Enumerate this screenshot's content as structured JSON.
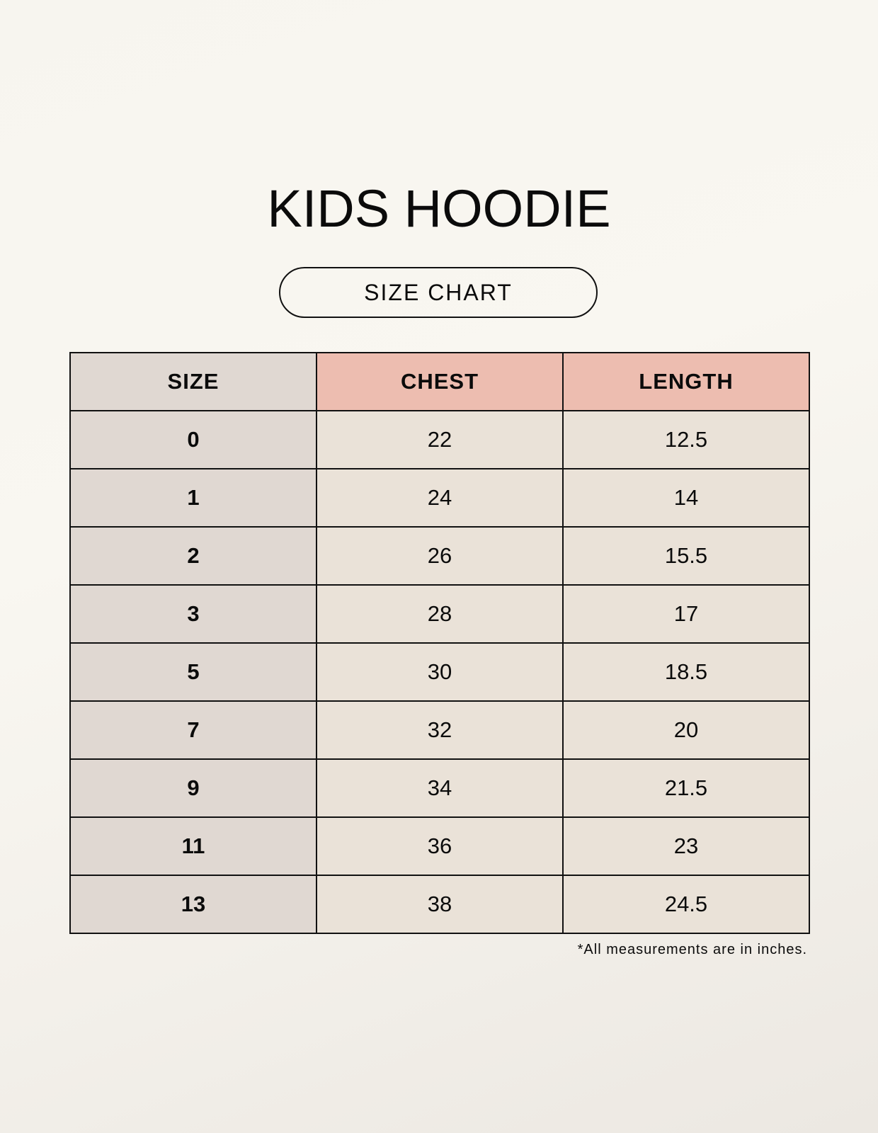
{
  "title": "KIDS HOODIE",
  "subtitle": "SIZE CHART",
  "table": {
    "headers": [
      "SIZE",
      "CHEST",
      "LENGTH"
    ],
    "rows": [
      [
        "0",
        "22",
        "12.5"
      ],
      [
        "1",
        "24",
        "14"
      ],
      [
        "2",
        "26",
        "15.5"
      ],
      [
        "3",
        "28",
        "17"
      ],
      [
        "5",
        "30",
        "18.5"
      ],
      [
        "7",
        "32",
        "20"
      ],
      [
        "9",
        "34",
        "21.5"
      ],
      [
        "11",
        "36",
        "23"
      ],
      [
        "13",
        "38",
        "24.5"
      ]
    ]
  },
  "footnote": "*All measurements are in inches.",
  "colors": {
    "size_column": "#e0d8d2",
    "header_accent": "#edbdb0",
    "cell": "#eae2d8"
  }
}
